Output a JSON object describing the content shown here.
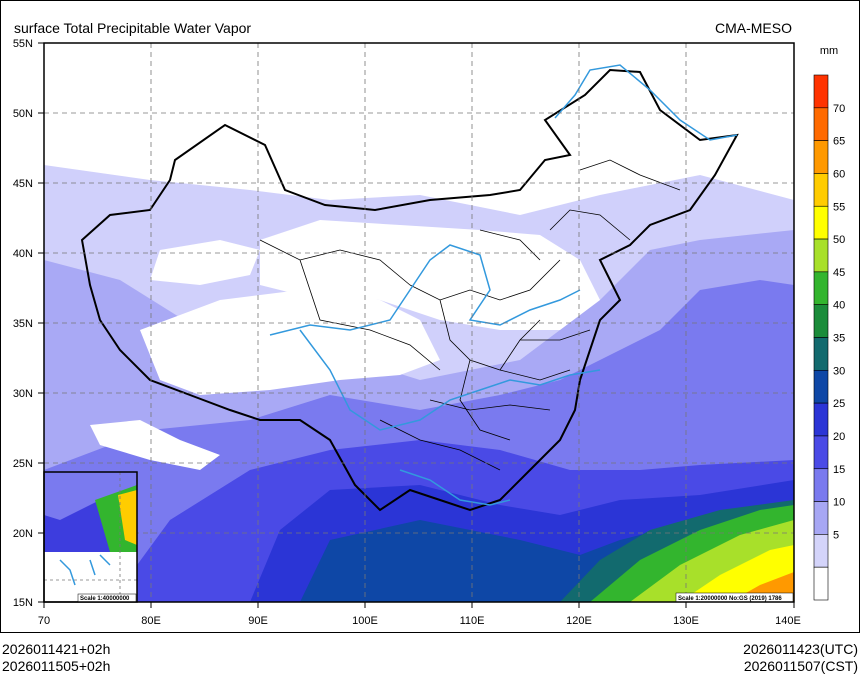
{
  "title_left": "surface Total Precipitable Water Vapor",
  "title_right": "CMA-MESO",
  "unit": "mm",
  "footer": {
    "left_line1": "2026011421+02h",
    "left_line2": "2026011505+02h",
    "right_line1": "2026011423(UTC)",
    "right_line2": "2026011507(CST)"
  },
  "map": {
    "lat_labels": [
      "55N",
      "50N",
      "45N",
      "40N",
      "35N",
      "30N",
      "25N",
      "20N",
      "15N"
    ],
    "lon_labels": [
      "70",
      "80E",
      "90E",
      "100E",
      "110E",
      "120E",
      "130E",
      "140E"
    ],
    "scale_main": "Scale 1:20000000 No:GS (2019) 1786",
    "scale_inset": "Scale 1:40000000"
  },
  "colorbar": {
    "levels": [
      "70",
      "65",
      "60",
      "55",
      "50",
      "45",
      "40",
      "35",
      "30",
      "25",
      "20",
      "15",
      "10",
      "5"
    ],
    "colors": [
      "#ff3300",
      "#ff6a00",
      "#ff9900",
      "#ffcc00",
      "#ffff00",
      "#a8e02a",
      "#33b52e",
      "#1b8c3a",
      "#126a6e",
      "#0e47a6",
      "#2b35d6",
      "#4a4ae6",
      "#7a7aef",
      "#a7a7f4",
      "#d4d4fa",
      "#ffffff"
    ]
  },
  "colors": {
    "river": "#3399dd",
    "border": "#000000",
    "light_band": "#a9a9f5",
    "mid_band": "#7a7aef"
  }
}
